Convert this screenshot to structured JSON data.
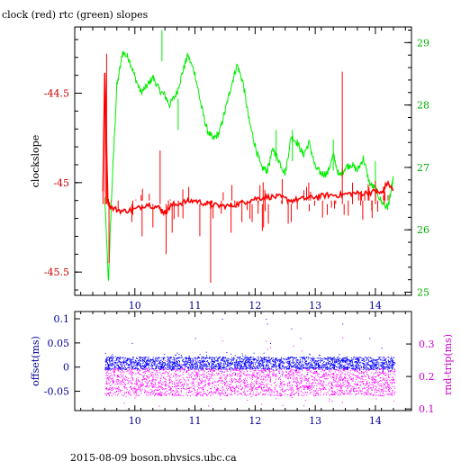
{
  "title": "clock (red) rtc (green) slopes",
  "footer": "2015-08-09  boson.physics.ubc.ca",
  "colors": {
    "clock": "#ff0000",
    "clock_axis": "#cc0000",
    "rtc": "#00ee00",
    "offset": "#0000ff",
    "offset_axis": "#000099",
    "rndtrip": "#ff00ff",
    "rndtrip_axis": "#cc00cc",
    "frame": "#000000"
  },
  "chart_data": [
    {
      "type": "line",
      "title": "clock (red) rtc (green) slopes",
      "xlabel": "",
      "x_ticks": [
        "10",
        "11",
        "12",
        "13",
        "14"
      ],
      "xlim": [
        9.0,
        14.6
      ],
      "ylabel_left": "clockslope",
      "y_left_ticks": [
        "-44.5",
        "-45",
        "-45.5"
      ],
      "ylim_left": [
        -45.63,
        -44.13
      ],
      "y_right_ticks": [
        "25",
        "26",
        "27",
        "28",
        "29"
      ],
      "ylim_right": [
        24.95,
        29.25
      ],
      "grid": false,
      "series": [
        {
          "name": "clock",
          "axis": "left",
          "color": "#ff0000",
          "points": [
            [
              9.47,
              -45.05
            ],
            [
              9.5,
              -44.38
            ],
            [
              9.55,
              -45.1
            ],
            [
              9.6,
              -45.14
            ],
            [
              9.8,
              -45.16
            ],
            [
              10.0,
              -45.15
            ],
            [
              10.2,
              -45.12
            ],
            [
              10.4,
              -45.14
            ],
            [
              10.5,
              -45.17
            ],
            [
              10.6,
              -45.13
            ],
            [
              10.8,
              -45.11
            ],
            [
              11.0,
              -45.1
            ],
            [
              11.2,
              -45.12
            ],
            [
              11.4,
              -45.13
            ],
            [
              11.6,
              -45.13
            ],
            [
              11.8,
              -45.11
            ],
            [
              12.0,
              -45.09
            ],
            [
              12.2,
              -45.08
            ],
            [
              12.4,
              -45.08
            ],
            [
              12.6,
              -45.1
            ],
            [
              12.8,
              -45.09
            ],
            [
              13.0,
              -45.08
            ],
            [
              13.2,
              -45.07
            ],
            [
              13.4,
              -45.07
            ],
            [
              13.6,
              -45.06
            ],
            [
              13.8,
              -45.06
            ],
            [
              14.0,
              -45.05
            ],
            [
              14.1,
              -45.06
            ],
            [
              14.2,
              -45.0
            ],
            [
              14.3,
              -45.05
            ]
          ],
          "spikes": [
            [
              9.47,
              -45.05
            ],
            [
              9.51,
              -44.55
            ],
            [
              9.53,
              -44.28
            ],
            [
              9.57,
              -45.45
            ],
            [
              9.95,
              -45.22
            ],
            [
              10.12,
              -45.3
            ],
            [
              10.3,
              -45.25
            ],
            [
              10.42,
              -44.82
            ],
            [
              10.52,
              -45.4
            ],
            [
              10.62,
              -45.28
            ],
            [
              10.8,
              -45.2
            ],
            [
              11.08,
              -45.3
            ],
            [
              11.3,
              -45.2
            ],
            [
              11.6,
              -45.28
            ],
            [
              11.95,
              -45.22
            ],
            [
              12.05,
              -45.1
            ],
            [
              12.12,
              -45.27
            ],
            [
              12.22,
              -45.23
            ],
            [
              12.45,
              -44.98
            ],
            [
              12.6,
              -45.22
            ],
            [
              12.9,
              -45.16
            ],
            [
              13.2,
              -45.18
            ],
            [
              13.45,
              -44.38
            ],
            [
              13.48,
              -45.18
            ],
            [
              13.62,
              -45.0
            ],
            [
              13.85,
              -45.12
            ],
            [
              14.0,
              -44.99
            ],
            [
              14.15,
              -45.02
            ]
          ],
          "down_spikes": [
            [
              11.26,
              -45.56
            ],
            [
              11.78,
              -45.22
            ],
            [
              12.14,
              -45.25
            ],
            [
              12.55,
              -45.23
            ]
          ]
        },
        {
          "name": "rtc",
          "axis": "right",
          "color": "#00ee00",
          "points": [
            [
              9.5,
              26.5
            ],
            [
              9.56,
              25.15
            ],
            [
              9.62,
              26.7
            ],
            [
              9.7,
              28.3
            ],
            [
              9.8,
              28.85
            ],
            [
              9.9,
              28.75
            ],
            [
              10.0,
              28.45
            ],
            [
              10.1,
              28.2
            ],
            [
              10.2,
              28.3
            ],
            [
              10.3,
              28.45
            ],
            [
              10.4,
              28.25
            ],
            [
              10.5,
              28.15
            ],
            [
              10.58,
              28.0
            ],
            [
              10.7,
              28.2
            ],
            [
              10.8,
              28.55
            ],
            [
              10.88,
              28.8
            ],
            [
              11.0,
              28.5
            ],
            [
              11.1,
              28.0
            ],
            [
              11.2,
              27.6
            ],
            [
              11.3,
              27.45
            ],
            [
              11.4,
              27.55
            ],
            [
              11.5,
              27.9
            ],
            [
              11.6,
              28.3
            ],
            [
              11.7,
              28.65
            ],
            [
              11.8,
              28.35
            ],
            [
              11.9,
              27.75
            ],
            [
              12.0,
              27.35
            ],
            [
              12.1,
              27.0
            ],
            [
              12.2,
              26.95
            ],
            [
              12.3,
              27.3
            ],
            [
              12.4,
              27.1
            ],
            [
              12.5,
              26.9
            ],
            [
              12.6,
              27.5
            ],
            [
              12.7,
              27.4
            ],
            [
              12.8,
              27.2
            ],
            [
              12.9,
              27.4
            ],
            [
              13.0,
              27.0
            ],
            [
              13.1,
              26.9
            ],
            [
              13.2,
              26.9
            ],
            [
              13.3,
              27.2
            ],
            [
              13.4,
              26.85
            ],
            [
              13.5,
              27.0
            ],
            [
              13.6,
              27.05
            ],
            [
              13.7,
              26.95
            ],
            [
              13.8,
              27.15
            ],
            [
              13.9,
              26.75
            ],
            [
              14.0,
              26.65
            ],
            [
              14.1,
              26.45
            ],
            [
              14.2,
              26.35
            ],
            [
              14.25,
              26.55
            ],
            [
              14.3,
              26.85
            ]
          ],
          "spikes": [
            [
              10.45,
              29.2
            ],
            [
              10.72,
              28.1
            ],
            [
              12.35,
              27.6
            ],
            [
              12.62,
              27.6
            ],
            [
              13.3,
              27.45
            ],
            [
              14.0,
              27.1
            ]
          ]
        }
      ]
    },
    {
      "type": "scatter",
      "xlabel": "",
      "x_ticks": [
        "10",
        "11",
        "12",
        "13",
        "14"
      ],
      "xlim": [
        9.0,
        14.6
      ],
      "ylabel_left": "offset(ms)",
      "y_left_ticks": [
        "0.1",
        "0.05",
        "0",
        "-0.05"
      ],
      "ylim_left": [
        -0.09,
        0.115
      ],
      "ylabel_right": "rnd-trip(ms)",
      "y_right_ticks": [
        "0.3",
        "0.2",
        "0.1"
      ],
      "ylim_right": [
        0.095,
        0.4
      ],
      "grid": false,
      "series": [
        {
          "name": "offset",
          "axis": "left",
          "color": "#0000ff",
          "x_range": [
            9.5,
            14.32
          ],
          "band": [
            -0.005,
            0.021
          ],
          "outliers": [
            [
              12.18,
              0.1
            ],
            [
              12.2,
              0.09
            ],
            [
              12.25,
              0.05
            ],
            [
              12.6,
              0.08
            ],
            [
              12.75,
              0.06
            ],
            [
              13.45,
              0.09
            ],
            [
              11.45,
              0.1
            ],
            [
              9.95,
              0.05
            ],
            [
              10.7,
              0.03
            ],
            [
              11.0,
              0.06
            ],
            [
              13.9,
              0.06
            ],
            [
              14.1,
              0.04
            ]
          ]
        },
        {
          "name": "rnd-trip",
          "axis": "right",
          "color": "#ff00ff",
          "x_range": [
            9.5,
            14.32
          ],
          "band": [
            0.14,
            0.225
          ],
          "outliers": [
            [
              12.18,
              0.31
            ],
            [
              12.2,
              0.285
            ],
            [
              12.25,
              0.29
            ],
            [
              12.63,
              0.295
            ],
            [
              12.77,
              0.28
            ],
            [
              13.45,
              0.32
            ],
            [
              11.45,
              0.31
            ],
            [
              11.0,
              0.26
            ],
            [
              10.5,
              0.25
            ],
            [
              13.0,
              0.25
            ]
          ]
        }
      ]
    }
  ]
}
